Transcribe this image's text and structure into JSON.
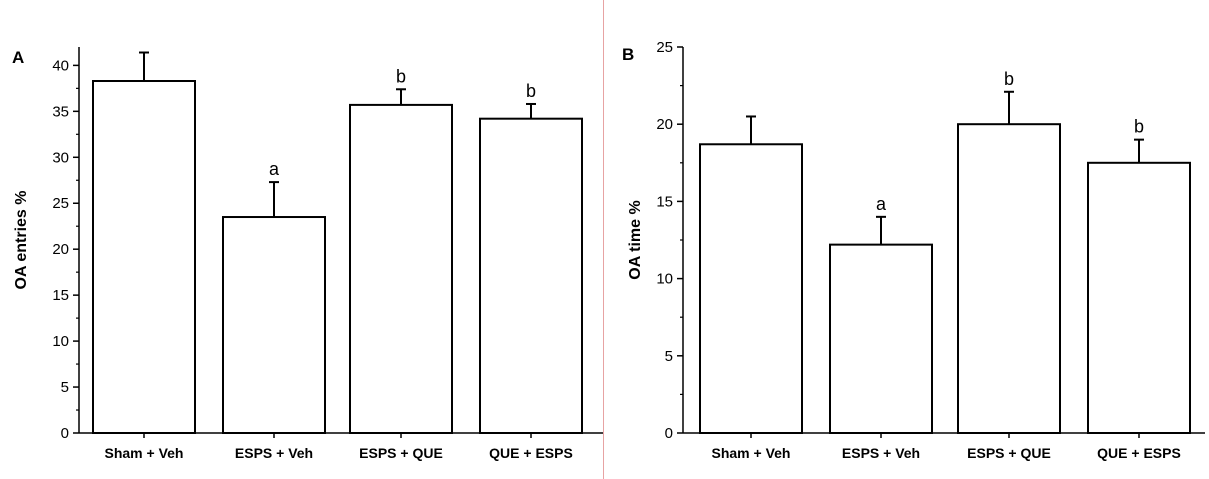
{
  "chart_data": [
    {
      "type": "bar",
      "panel_label": "A",
      "ylabel": "OA entries %",
      "xlabel": "",
      "ylim": [
        0,
        42
      ],
      "yticks": [
        0,
        5,
        10,
        15,
        20,
        25,
        30,
        35,
        40
      ],
      "yticks_text": [
        "0",
        "5",
        "10",
        "15",
        "20",
        "25",
        "30",
        "35",
        "40"
      ],
      "categories": [
        "Sham + Veh",
        "ESPS + Veh",
        "ESPS + QUE",
        "QUE + ESPS"
      ],
      "values": [
        38.3,
        23.5,
        35.7,
        34.2
      ],
      "errors": [
        3.1,
        3.8,
        1.7,
        1.6
      ],
      "annotations": [
        "",
        "a",
        "b",
        "b"
      ],
      "grid": false
    },
    {
      "type": "bar",
      "panel_label": "B",
      "ylabel": "OA time %",
      "xlabel": "",
      "ylim": [
        0,
        25
      ],
      "yticks": [
        0,
        5,
        10,
        15,
        20,
        25
      ],
      "yticks_text": [
        "0",
        "5",
        "10",
        "15",
        "20",
        "25"
      ],
      "categories": [
        "Sham + Veh",
        "ESPS + Veh",
        "ESPS + QUE",
        "QUE + ESPS"
      ],
      "values": [
        18.7,
        12.2,
        20.0,
        17.5
      ],
      "errors": [
        1.8,
        1.8,
        2.1,
        1.5
      ],
      "annotations": [
        "",
        "a",
        "b",
        "b"
      ],
      "grid": false
    }
  ],
  "colors": {
    "bar_fill": "#ffffff",
    "stroke": "#000000",
    "divider": "#e7a3a3"
  }
}
